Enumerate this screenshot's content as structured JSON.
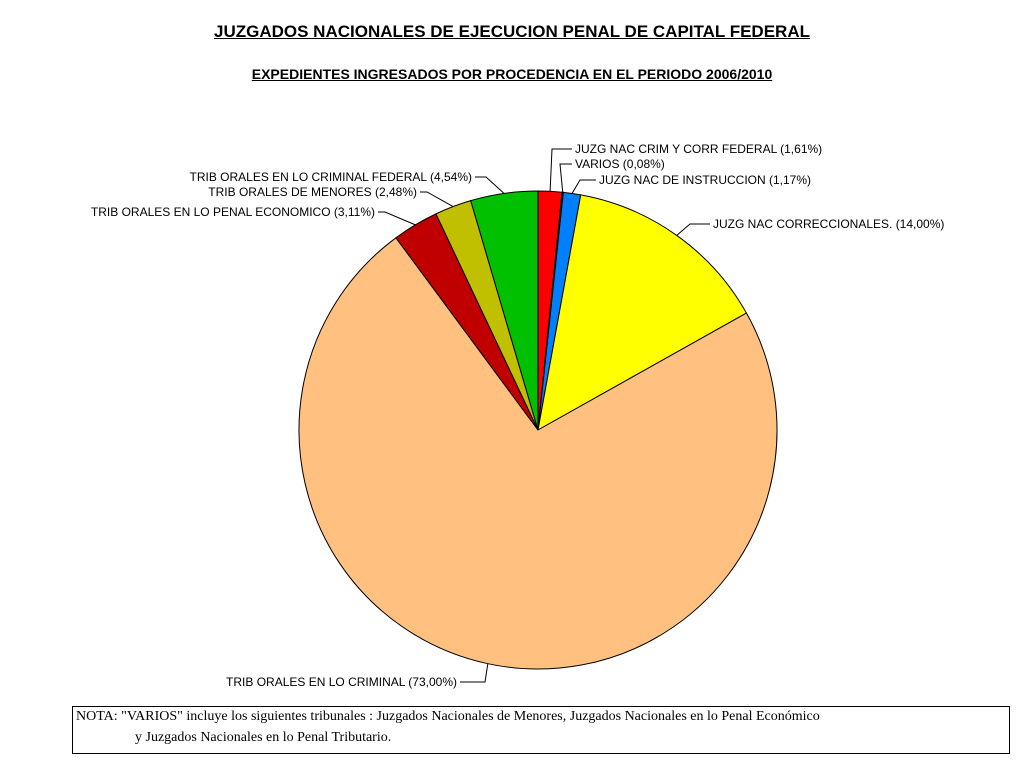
{
  "chart_data": {
    "type": "pie",
    "title": "JUZGADOS NACIONALES DE EJECUCION PENAL DE CAPITAL FEDERAL",
    "subtitle": "EXPEDIENTES INGRESADOS POR PROCEDENCIA EN EL PERIODO 2006/2010",
    "slices": [
      {
        "label": "JUZG NAC CRIM Y CORR FEDERAL (1,61%)",
        "value": 1.61,
        "color": "#ff0000"
      },
      {
        "label": "VARIOS (0,08%)",
        "value": 0.08,
        "color": "#00008b"
      },
      {
        "label": "JUZG NAC DE INSTRUCCION (1,17%)",
        "value": 1.17,
        "color": "#0080ff"
      },
      {
        "label": "JUZG NAC CORRECCIONALES. (14,00%)",
        "value": 14.0,
        "color": "#ffff00"
      },
      {
        "label": "TRIB ORALES EN LO CRIMINAL (73,00%)",
        "value": 73.0,
        "color": "#ffc080"
      },
      {
        "label": "TRIB ORALES EN LO PENAL ECONOMICO (3,11%)",
        "value": 3.11,
        "color": "#c00000"
      },
      {
        "label": "TRIB ORALES DE MENORES (2,48%)",
        "value": 2.48,
        "color": "#c0c000"
      },
      {
        "label": "TRIB ORALES EN LO CRIMINAL FEDERAL (4,54%)",
        "value": 4.54,
        "color": "#00c000"
      }
    ]
  },
  "note": {
    "line1": "NOTA: \"VARIOS\" incluye los siguientes tribunales : Juzgados Nacionales de Menores,  Juzgados Nacionales en lo Penal Económico",
    "line2": "y  Juzgados Nacionales en lo Penal Tributario."
  }
}
